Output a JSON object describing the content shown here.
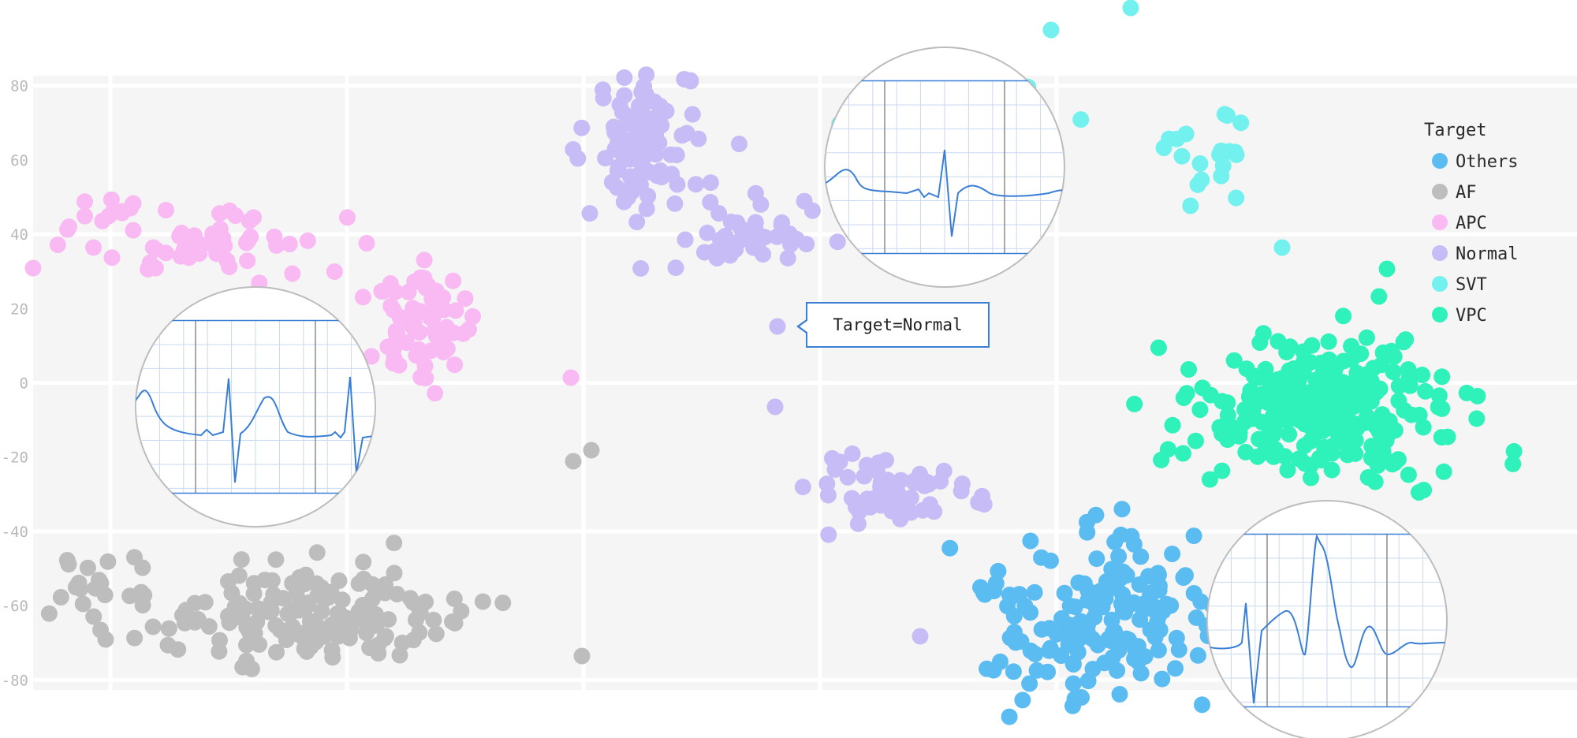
{
  "chart_data": {
    "type": "scatter",
    "title": "",
    "xlabel": "",
    "ylabel": "",
    "ylim": [
      -84,
      84
    ],
    "yticks": [
      80,
      60,
      40,
      20,
      0,
      -20,
      -40,
      -60,
      -80
    ],
    "grid": true,
    "legend_position": "right",
    "legend_title": "Target",
    "tooltip_text": "Target=Normal",
    "series": [
      {
        "name": "Others",
        "color": "#5bbcf2",
        "x_range": [
          -8,
          76
        ],
        "y_range": [
          -88,
          -18
        ]
      },
      {
        "name": "AF",
        "color": "#bdbdbd",
        "x_range": [
          -100,
          22
        ],
        "y_range": [
          -90,
          -36
        ]
      },
      {
        "name": "APC",
        "color": "#f9b9f3",
        "x_range": [
          -100,
          6
        ],
        "y_range": [
          -28,
          49
        ]
      },
      {
        "name": "Normal",
        "color": "#c7bcf5",
        "x_range": [
          8,
          60
        ],
        "y_range": [
          -70,
          86
        ]
      },
      {
        "name": "SVT",
        "color": "#73f1ef",
        "x_range": [
          44,
          96
        ],
        "y_range": [
          33,
          102
        ]
      },
      {
        "name": "VPC",
        "color": "#2ff2bb",
        "x_range": [
          72,
          114
        ],
        "y_range": [
          -37,
          31
        ]
      }
    ]
  }
}
